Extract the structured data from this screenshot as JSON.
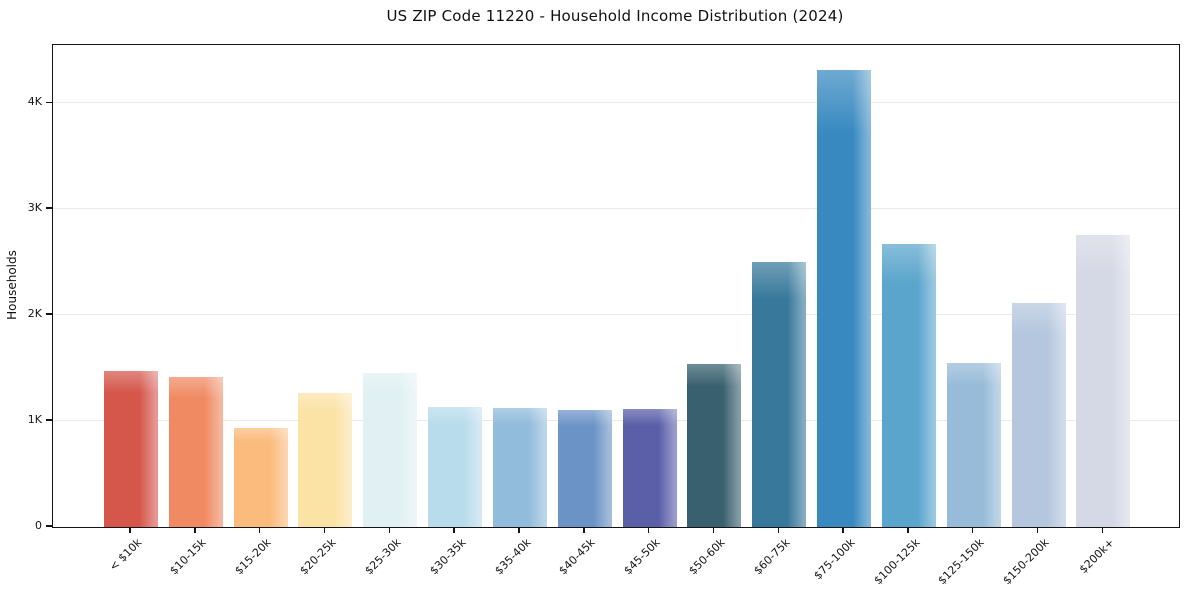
{
  "chart_data": {
    "type": "bar",
    "title": "US ZIP Code 11220 - Household Income Distribution (2024)",
    "xlabel": "",
    "ylabel": "Households",
    "categories": [
      "< $10k",
      "$10-15k",
      "$15-20k",
      "$20-25k",
      "$25-30k",
      "$30-35k",
      "$35-40k",
      "$40-45k",
      "$45-50k",
      "$50-60k",
      "$60-75k",
      "$75-100k",
      "$100-125k",
      "$125-150k",
      "$150-200k",
      "$200k+"
    ],
    "values": [
      1470,
      1415,
      935,
      1265,
      1450,
      1130,
      1120,
      1105,
      1110,
      1540,
      2500,
      4315,
      2670,
      1550,
      2110,
      2755
    ],
    "bar_colors": [
      "#d5574c",
      "#f08a63",
      "#fbbb7c",
      "#fbe3a6",
      "#e1f0f3",
      "#b9dcec",
      "#92bcdb",
      "#6c93c6",
      "#5a5fa8",
      "#38606f",
      "#38799b",
      "#3789c0",
      "#5aa5cc",
      "#97bbd8",
      "#b5c7de",
      "#d5d8e5"
    ],
    "ylim": [
      0,
      4550
    ],
    "yticks": [
      {
        "value": 0,
        "label": "0"
      },
      {
        "value": 1000,
        "label": "1K"
      },
      {
        "value": 2000,
        "label": "2K"
      },
      {
        "value": 3000,
        "label": "3K"
      },
      {
        "value": 4000,
        "label": "4K"
      }
    ],
    "grid": "horizontal",
    "legend_position": "none",
    "x_tick_rotation_deg": 45
  }
}
